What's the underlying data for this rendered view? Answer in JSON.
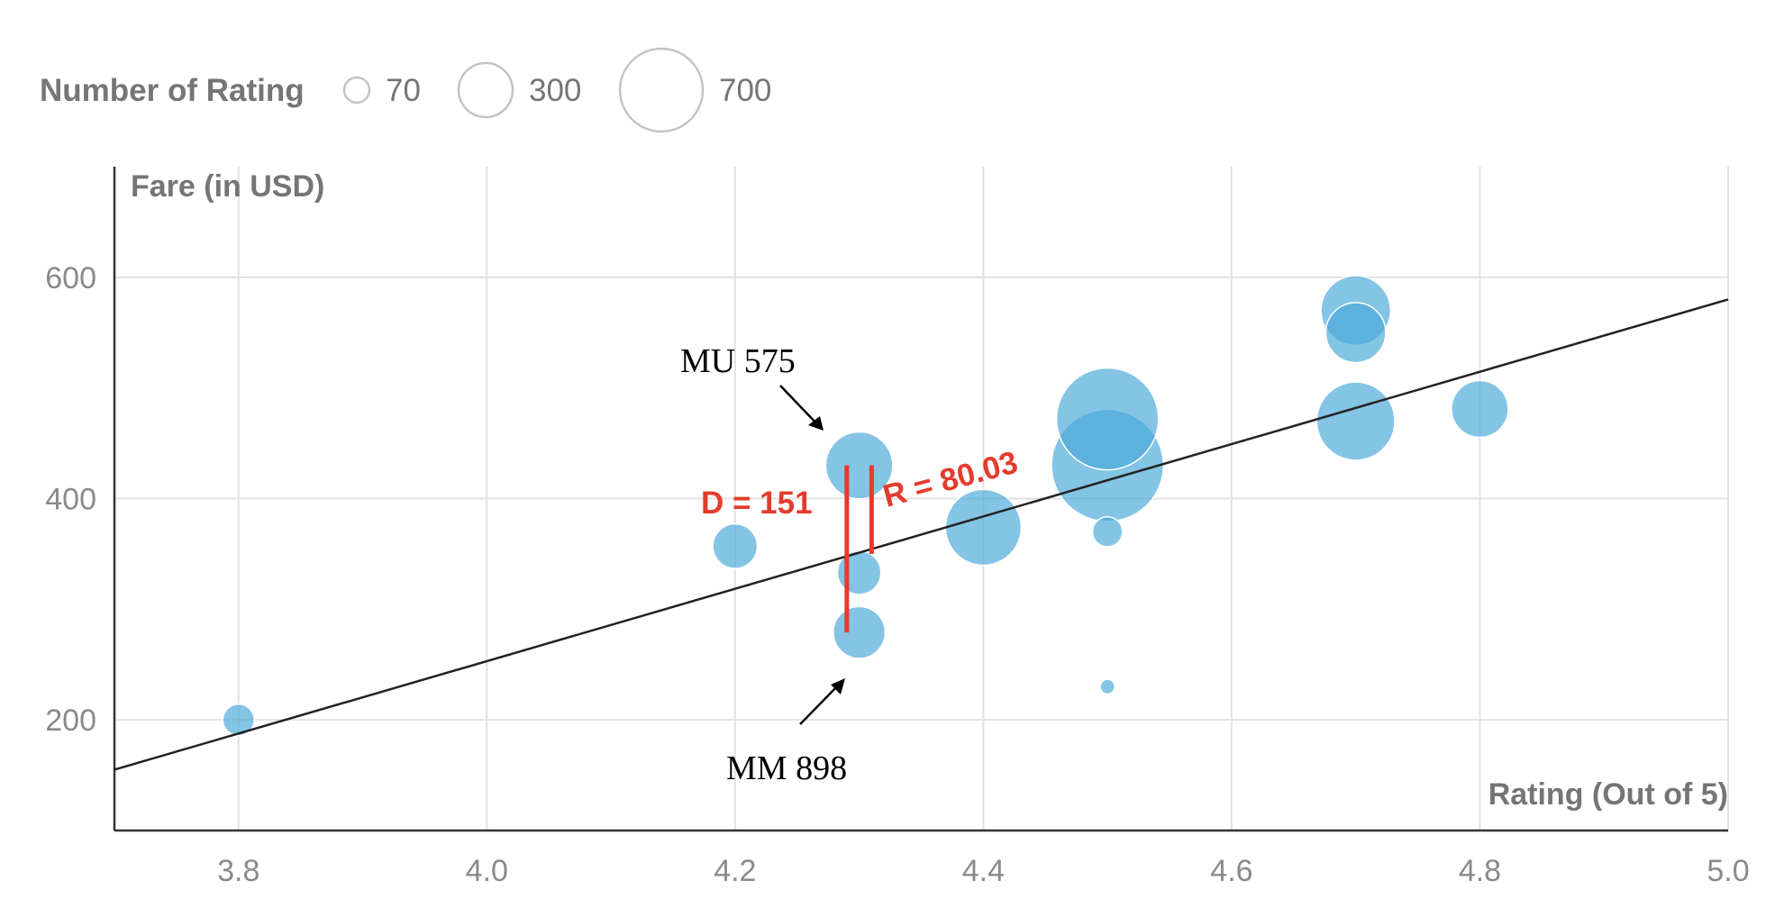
{
  "colors": {
    "bubble": "#4aa8d8",
    "gridline": "#e2e2e2",
    "axis": "#333333",
    "fit_line": "#222222",
    "highlight": "#e43b2c",
    "legend_circle": "#c4c4c4"
  },
  "legend": {
    "title": "Number of Rating",
    "items": [
      {
        "label": "70",
        "count": 70
      },
      {
        "label": "300",
        "count": 300
      },
      {
        "label": "700",
        "count": 700
      }
    ]
  },
  "chart_data": {
    "type": "scatter",
    "subtype": "bubble",
    "xlabel": "Rating (Out of 5)",
    "ylabel": "Fare (in USD)",
    "xlim": [
      3.7,
      5.0
    ],
    "ylim": [
      100,
      700
    ],
    "x_ticks": [
      "3.8",
      "4.0",
      "4.2",
      "4.4",
      "4.6",
      "4.8",
      "5.0"
    ],
    "y_ticks": [
      "200",
      "400",
      "600"
    ],
    "grid": true,
    "legend_placement": "top-left",
    "points": [
      {
        "x": 3.8,
        "y": 200,
        "size": 55
      },
      {
        "x": 4.2,
        "y": 357,
        "size": 110
      },
      {
        "x": 4.3,
        "y": 430,
        "size": 250
      },
      {
        "x": 4.3,
        "y": 333,
        "size": 105
      },
      {
        "x": 4.3,
        "y": 279,
        "size": 150
      },
      {
        "x": 4.4,
        "y": 374,
        "size": 320
      },
      {
        "x": 4.5,
        "y": 472,
        "size": 580
      },
      {
        "x": 4.5,
        "y": 430,
        "size": 700
      },
      {
        "x": 4.5,
        "y": 370,
        "size": 50
      },
      {
        "x": 4.5,
        "y": 230,
        "size": 12
      },
      {
        "x": 4.7,
        "y": 570,
        "size": 270
      },
      {
        "x": 4.7,
        "y": 550,
        "size": 200
      },
      {
        "x": 4.7,
        "y": 470,
        "size": 340
      },
      {
        "x": 4.8,
        "y": 481,
        "size": 180
      }
    ],
    "trend_line": {
      "x": [
        3.7,
        5.0
      ],
      "y": [
        155,
        580
      ]
    },
    "annotations": [
      {
        "text": "MU 575",
        "x": 4.3,
        "y": 430
      },
      {
        "text": "MM 898",
        "x": 4.3,
        "y": 279
      },
      {
        "text": "D = 151",
        "x1": 4.29,
        "y1": 279,
        "x2": 4.29,
        "y2": 430
      },
      {
        "text": "R = 80.03",
        "x1": 4.31,
        "y1": 350,
        "x2": 4.31,
        "y2": 430
      }
    ]
  }
}
